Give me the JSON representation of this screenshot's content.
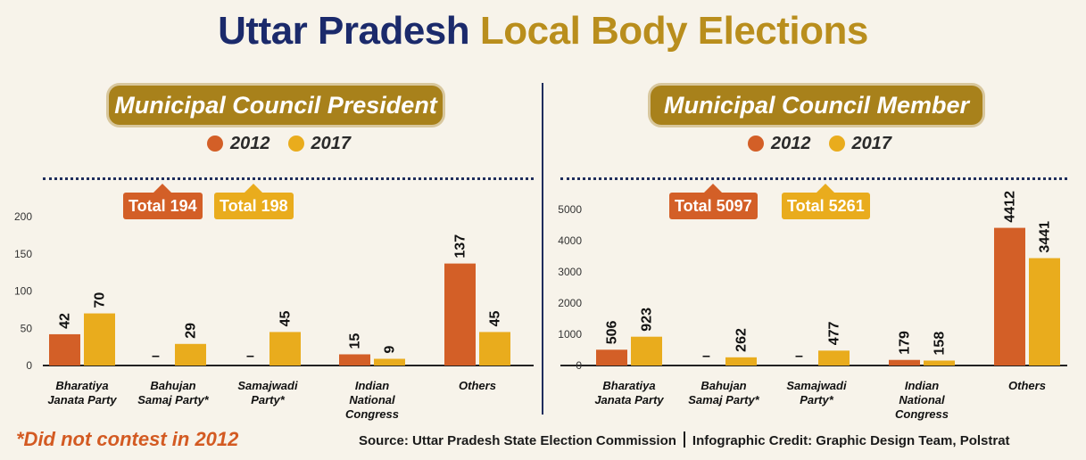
{
  "title": {
    "part1": "Uttar Pradesh",
    "part2": "Local Body Elections"
  },
  "colors": {
    "y2012": "#d35f27",
    "y2017": "#e9ac1d",
    "gold": "#a8811b",
    "navy": "#1b2a6b"
  },
  "legend": {
    "a": "2012",
    "b": "2017"
  },
  "note": "*Did not contest in 2012",
  "source": "Source: Uttar Pradesh State Election Commission",
  "credit": "Infographic Credit: Graphic Design Team, Polstrat",
  "chart_data": [
    {
      "type": "bar",
      "title": "Municipal Council President",
      "totals": {
        "a": "Total 194",
        "b": "Total 198"
      },
      "categories": [
        [
          "Bharatiya",
          "Janata Party"
        ],
        [
          "Bahujan",
          "Samaj Party*"
        ],
        [
          "Samajwadi",
          "Party*"
        ],
        [
          "Indian",
          "National",
          "Congress"
        ],
        [
          "Others"
        ]
      ],
      "series": [
        {
          "name": "2012",
          "values": [
            42,
            null,
            null,
            15,
            137
          ],
          "labels": [
            "42",
            "–",
            "–",
            "15",
            "137"
          ]
        },
        {
          "name": "2017",
          "values": [
            70,
            29,
            45,
            9,
            45
          ],
          "labels": [
            "70",
            "29",
            "45",
            "9",
            "45"
          ]
        }
      ],
      "yticks": [
        0,
        50,
        100,
        150,
        200
      ],
      "ylim": [
        0,
        200
      ],
      "grid": false
    },
    {
      "type": "bar",
      "title": "Municipal Council Member",
      "totals": {
        "a": "Total 5097",
        "b": "Total 5261"
      },
      "categories": [
        [
          "Bharatiya",
          "Janata Party"
        ],
        [
          "Bahujan",
          "Samaj Party*"
        ],
        [
          "Samajwadi",
          "Party*"
        ],
        [
          "Indian",
          "National",
          "Congress"
        ],
        [
          "Others"
        ]
      ],
      "series": [
        {
          "name": "2012",
          "values": [
            506,
            null,
            null,
            179,
            4412
          ],
          "labels": [
            "506",
            "–",
            "–",
            "179",
            "4412"
          ]
        },
        {
          "name": "2017",
          "values": [
            923,
            262,
            477,
            158,
            3441
          ],
          "labels": [
            "923",
            "262",
            "477",
            "158",
            "3441"
          ]
        }
      ],
      "yticks": [
        0,
        1000,
        2000,
        3000,
        4000,
        5000
      ],
      "ylim": [
        0,
        5000
      ],
      "grid": false
    }
  ]
}
